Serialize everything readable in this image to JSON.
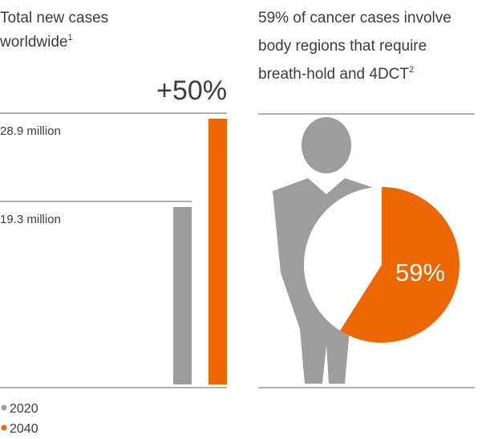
{
  "chart_data": [
    {
      "type": "bar",
      "title_lines": [
        "Total new cases",
        "worldwide"
      ],
      "title_footnote": "1",
      "annotation": "+50%",
      "categories": [
        "2020",
        "2040"
      ],
      "values": [
        19.3,
        28.9
      ],
      "value_labels": [
        "19.3 million",
        "28.9 million"
      ],
      "colors": [
        "#9d9d9d",
        "#ec6602"
      ]
    },
    {
      "type": "pie",
      "title_lines": [
        "59% of cancer cases involve",
        "body regions that require",
        "breath-hold and 4DCT"
      ],
      "title_footnote": "2",
      "values": [
        59
      ],
      "value_labels": [
        "59%"
      ],
      "color": "#ec6602"
    }
  ]
}
